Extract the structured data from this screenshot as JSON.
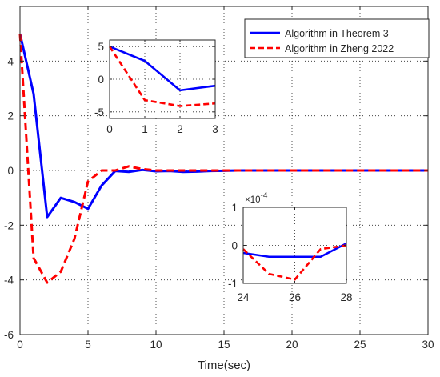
{
  "chart_data": [
    {
      "type": "line",
      "xlabel": "Time(sec)",
      "ylabel": "",
      "xlim": [
        0,
        30
      ],
      "ylim": [
        -6,
        6
      ],
      "xticks": [
        "0",
        "5",
        "10",
        "15",
        "20",
        "25",
        "30"
      ],
      "yticks": [
        "-6",
        "-4",
        "-2",
        "0",
        "2",
        "4"
      ],
      "grid": true,
      "legend_position": "top-right",
      "series": [
        {
          "name": "Algorithm in Theorem 3",
          "color": "#0000ff",
          "style": "solid",
          "x": [
            0,
            1,
            2,
            3,
            4,
            5,
            6,
            7,
            8,
            9,
            10,
            11,
            12,
            13,
            14,
            15,
            16,
            17,
            18,
            19,
            20,
            21,
            22,
            23,
            24,
            25,
            26,
            27,
            28,
            29,
            30
          ],
          "y": [
            5,
            2.8,
            -1.7,
            -1.0,
            -1.15,
            -1.4,
            -0.55,
            -0.02,
            -0.05,
            0.02,
            -0.03,
            -0.02,
            -0.05,
            -0.04,
            -0.02,
            -0.01,
            0,
            0,
            0,
            0,
            0,
            0,
            0,
            0,
            0,
            0,
            0,
            0,
            0,
            0,
            0
          ]
        },
        {
          "name": "Algorithm in Zheng 2022",
          "color": "#ff0000",
          "style": "dashed",
          "x": [
            0,
            1,
            2,
            3,
            4,
            5,
            6,
            7,
            8,
            9,
            10,
            11,
            12,
            13,
            14,
            15,
            16,
            17,
            18,
            19,
            20,
            21,
            22,
            23,
            24,
            25,
            26,
            27,
            28,
            29,
            30
          ],
          "y": [
            5,
            -3.2,
            -4.1,
            -3.7,
            -2.5,
            -0.4,
            0,
            0,
            0.15,
            0.05,
            0,
            0,
            0,
            0,
            0,
            0,
            0,
            0,
            0,
            0,
            0,
            0,
            0,
            0,
            0,
            0,
            0,
            0,
            0,
            0,
            0
          ]
        }
      ]
    },
    {
      "type": "line",
      "role": "inset",
      "xlim": [
        0,
        3
      ],
      "ylim": [
        -6,
        6
      ],
      "xticks": [
        "0",
        "1",
        "2",
        "3"
      ],
      "yticks": [
        "-5",
        "0",
        "5"
      ],
      "grid": true,
      "series": [
        {
          "name": "Algorithm in Theorem 3",
          "color": "#0000ff",
          "style": "solid",
          "x": [
            0,
            1,
            2,
            3
          ],
          "y": [
            5,
            2.8,
            -1.7,
            -1.0
          ]
        },
        {
          "name": "Algorithm in Zheng 2022",
          "color": "#ff0000",
          "style": "dashed",
          "x": [
            0,
            1,
            2,
            3
          ],
          "y": [
            5,
            -3.2,
            -4.1,
            -3.7
          ]
        }
      ]
    },
    {
      "type": "line",
      "role": "inset",
      "xlim": [
        24,
        28
      ],
      "ylim": [
        -1,
        1
      ],
      "y_exponent": "×10",
      "y_exponent_power": "-4",
      "xticks": [
        "24",
        "26",
        "28"
      ],
      "yticks": [
        "-1",
        "0",
        "1"
      ],
      "grid": true,
      "series": [
        {
          "name": "Algorithm in Theorem 3",
          "color": "#0000ff",
          "style": "solid",
          "x": [
            24,
            25,
            26,
            27,
            28
          ],
          "y": [
            -0.2,
            -0.3,
            -0.3,
            -0.3,
            0.05
          ]
        },
        {
          "name": "Algorithm in Zheng 2022",
          "color": "#ff0000",
          "style": "dashed",
          "x": [
            24,
            25,
            26,
            27,
            28
          ],
          "y": [
            -0.1,
            -0.75,
            -0.9,
            -0.1,
            0
          ]
        }
      ]
    }
  ]
}
